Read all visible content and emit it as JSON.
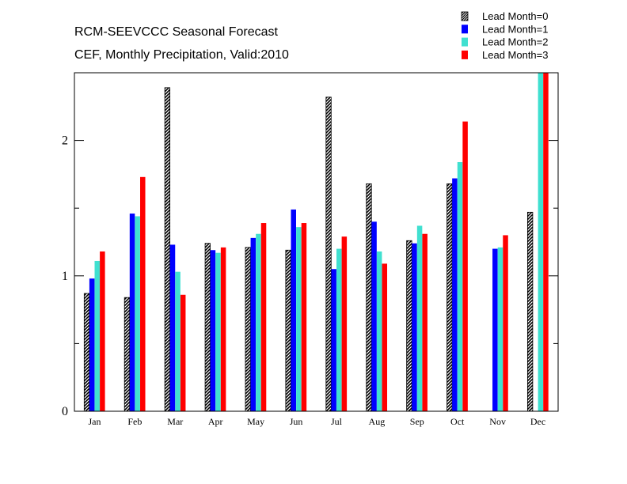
{
  "chart_data": {
    "type": "bar",
    "title": "RCM-SEEVCCC Seasonal Forecast",
    "subtitle": "CEF, Monthly Precipitation, Valid:2010",
    "xlabel": "",
    "ylabel": "",
    "ylim": [
      0,
      2.5
    ],
    "yticks": [
      0,
      1,
      2
    ],
    "categories": [
      "Jan",
      "Feb",
      "Mar",
      "Apr",
      "May",
      "Jun",
      "Jul",
      "Aug",
      "Sep",
      "Oct",
      "Nov",
      "Dec"
    ],
    "legend_position": "top-right",
    "series": [
      {
        "name": "Lead Month=0",
        "color": "#000000",
        "pattern": "hatch",
        "values": [
          0.87,
          0.84,
          2.39,
          1.24,
          1.21,
          1.19,
          2.32,
          1.68,
          1.26,
          1.68,
          null,
          1.47
        ]
      },
      {
        "name": "Lead Month=1",
        "color": "#0000ff",
        "values": [
          0.98,
          1.46,
          1.23,
          1.19,
          1.28,
          1.49,
          1.05,
          1.4,
          1.24,
          1.72,
          1.2,
          null
        ]
      },
      {
        "name": "Lead Month=2",
        "color": "#40e0d0",
        "values": [
          1.11,
          1.44,
          1.03,
          1.17,
          1.31,
          1.36,
          1.2,
          1.18,
          1.37,
          1.84,
          1.21,
          2.5
        ]
      },
      {
        "name": "Lead Month=3",
        "color": "#ff0000",
        "values": [
          1.18,
          1.73,
          0.86,
          1.21,
          1.39,
          1.39,
          1.29,
          1.09,
          1.31,
          2.14,
          1.3,
          2.5
        ]
      }
    ]
  }
}
